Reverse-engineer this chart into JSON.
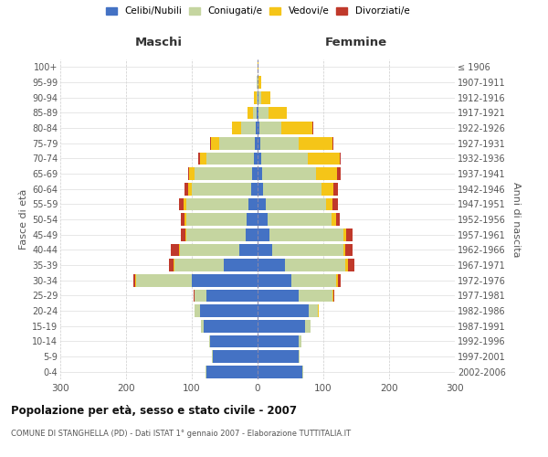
{
  "age_groups": [
    "0-4",
    "5-9",
    "10-14",
    "15-19",
    "20-24",
    "25-29",
    "30-34",
    "35-39",
    "40-44",
    "45-49",
    "50-54",
    "55-59",
    "60-64",
    "65-69",
    "70-74",
    "75-79",
    "80-84",
    "85-89",
    "90-94",
    "95-99",
    "100+"
  ],
  "birth_years": [
    "2002-2006",
    "1997-2001",
    "1992-1996",
    "1987-1991",
    "1982-1986",
    "1977-1981",
    "1972-1976",
    "1967-1971",
    "1962-1966",
    "1957-1961",
    "1952-1956",
    "1947-1951",
    "1942-1946",
    "1937-1941",
    "1932-1936",
    "1927-1931",
    "1922-1926",
    "1917-1921",
    "1912-1916",
    "1907-1911",
    "≤ 1906"
  ],
  "male_celibi": [
    78,
    68,
    72,
    82,
    88,
    78,
    100,
    52,
    28,
    18,
    16,
    14,
    10,
    8,
    6,
    4,
    3,
    2,
    0,
    0,
    0
  ],
  "male_coniugati": [
    1,
    1,
    2,
    4,
    8,
    18,
    85,
    75,
    90,
    90,
    92,
    95,
    90,
    88,
    72,
    55,
    22,
    5,
    2,
    1,
    0
  ],
  "male_vedovi": [
    0,
    0,
    0,
    0,
    0,
    0,
    1,
    1,
    1,
    2,
    3,
    3,
    5,
    8,
    10,
    12,
    14,
    8,
    3,
    0,
    0
  ],
  "male_divorziati": [
    0,
    0,
    0,
    0,
    0,
    1,
    3,
    7,
    13,
    7,
    6,
    8,
    6,
    2,
    2,
    1,
    0,
    0,
    0,
    0,
    0
  ],
  "female_nubili": [
    68,
    62,
    62,
    72,
    78,
    62,
    52,
    42,
    22,
    18,
    15,
    12,
    9,
    7,
    5,
    4,
    3,
    2,
    1,
    0,
    0
  ],
  "female_coniugate": [
    2,
    2,
    4,
    9,
    14,
    52,
    68,
    92,
    108,
    112,
    98,
    92,
    88,
    82,
    72,
    58,
    33,
    14,
    4,
    1,
    0
  ],
  "female_vedove": [
    0,
    0,
    0,
    0,
    1,
    1,
    2,
    3,
    4,
    5,
    7,
    10,
    18,
    32,
    48,
    52,
    48,
    28,
    14,
    4,
    1
  ],
  "female_divorziate": [
    0,
    0,
    0,
    0,
    0,
    2,
    4,
    10,
    10,
    10,
    5,
    8,
    7,
    5,
    2,
    1,
    1,
    1,
    0,
    0,
    0
  ],
  "colors_celibi": "#4472c4",
  "colors_coniugati": "#c5d5a0",
  "colors_vedovi": "#f5c518",
  "colors_divorziati": "#c0392b",
  "xlim": 300,
  "title": "Popolazione per età, sesso e stato civile - 2007",
  "subtitle": "COMUNE DI STANGHELLA (PD) - Dati ISTAT 1° gennaio 2007 - Elaborazione TUTTITALIA.IT",
  "ylabel": "Fasce di età",
  "ylabel_right": "Anni di nascita",
  "label_maschi": "Maschi",
  "label_femmine": "Femmine",
  "legend_labels": [
    "Celibi/Nubili",
    "Coniugati/e",
    "Vedovi/e",
    "Divorziati/e"
  ]
}
